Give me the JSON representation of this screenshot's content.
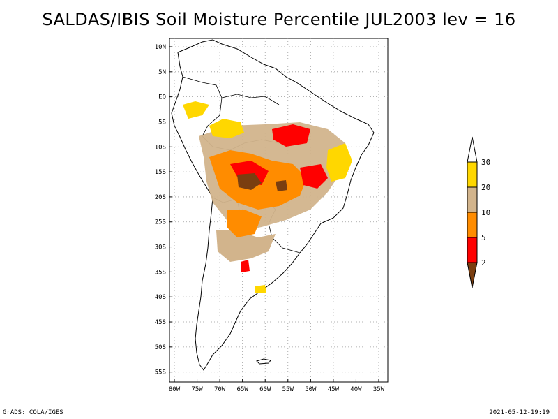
{
  "title": "SALDAS/IBIS Soil Moisture Percentile JUL2003 lev = 16",
  "map": {
    "lat_labels": [
      "10N",
      "5N",
      "EQ",
      "5S",
      "10S",
      "15S",
      "20S",
      "25S",
      "30S",
      "35S",
      "40S",
      "45S",
      "50S",
      "55S"
    ],
    "lon_labels": [
      "80W",
      "75W",
      "70W",
      "65W",
      "60W",
      "55W",
      "50W",
      "45W",
      "40W",
      "35W"
    ],
    "lon_range": [
      -80,
      -35
    ],
    "lat_range": [
      -56,
      12
    ],
    "grid": "dotted"
  },
  "legend": {
    "labels": [
      "2",
      "5",
      "10",
      "20",
      "30"
    ],
    "colors": [
      "#7a3e10",
      "#ff0000",
      "#ff8c00",
      "#d2b48c",
      "#ffd700",
      "#ffffff"
    ],
    "meaning": [
      "< 2",
      "2-5",
      "5-10",
      "10-20",
      "20-30",
      "> 30"
    ]
  },
  "footer": {
    "left": "GrADS: COLA/IGES",
    "right": "2021-05-12-19:19"
  }
}
